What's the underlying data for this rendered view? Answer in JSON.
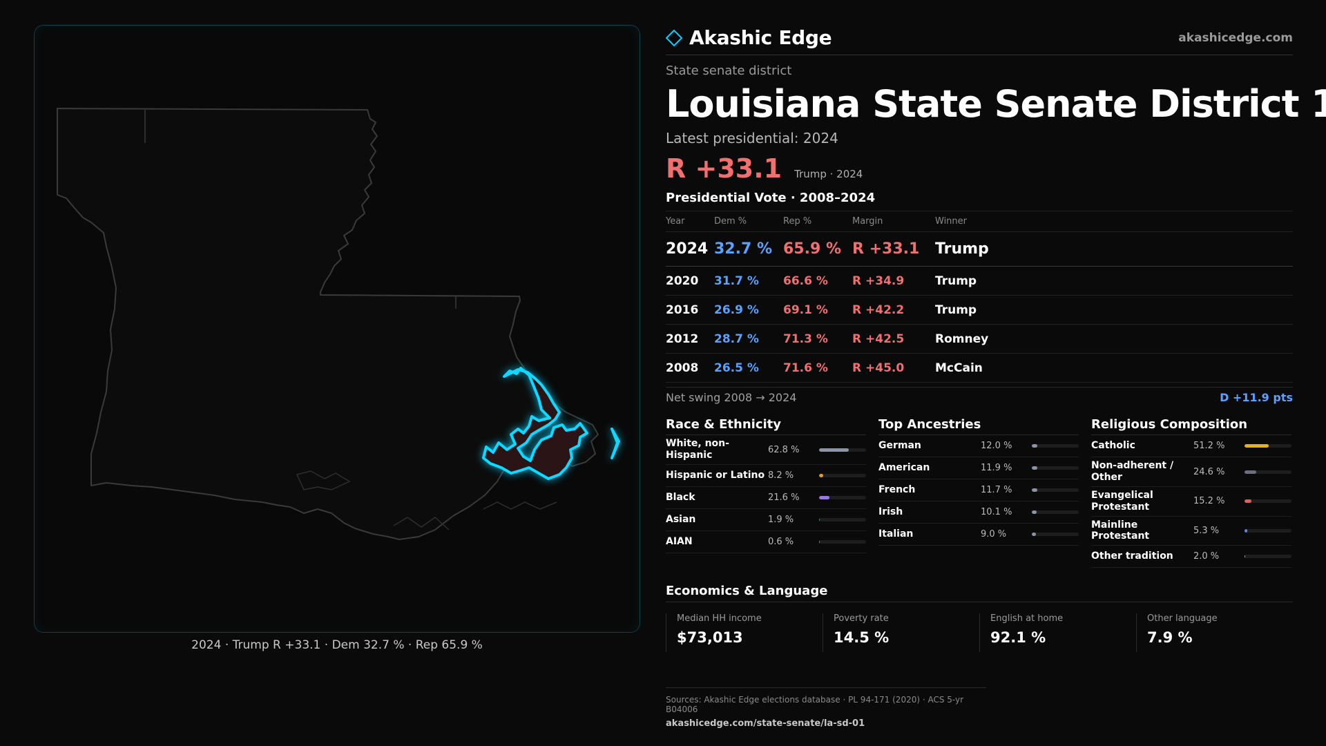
{
  "brand": {
    "name": "Akashic Edge",
    "url": "akashicedge.com",
    "accent": "#00d4ff"
  },
  "header": {
    "kind": "State senate district",
    "title": "Louisiana State Senate District 1",
    "latest": "Latest presidential: 2024",
    "margin": "R +33.1",
    "margin_sub": "Trump · 2024"
  },
  "votes": {
    "title": "Presidential Vote · 2008–2024",
    "headers": {
      "year": "Year",
      "dem": "Dem %",
      "rep": "Rep %",
      "margin": "Margin",
      "winner": "Winner"
    },
    "rows": [
      {
        "year": "2024",
        "dem": "32.7 %",
        "rep": "65.9 %",
        "margin": "R +33.1",
        "winner": "Trump"
      },
      {
        "year": "2020",
        "dem": "31.7 %",
        "rep": "66.6 %",
        "margin": "R +34.9",
        "winner": "Trump"
      },
      {
        "year": "2016",
        "dem": "26.9 %",
        "rep": "69.1 %",
        "margin": "R +42.2",
        "winner": "Trump"
      },
      {
        "year": "2012",
        "dem": "28.7 %",
        "rep": "71.3 %",
        "margin": "R +42.5",
        "winner": "Romney"
      },
      {
        "year": "2008",
        "dem": "26.5 %",
        "rep": "71.6 %",
        "margin": "R +45.0",
        "winner": "McCain"
      }
    ]
  },
  "swing": {
    "label": "Net swing 2008 → 2024",
    "value": "D +11.9 pts"
  },
  "race": {
    "title": "Race & Ethnicity",
    "items": [
      {
        "label": "White, non-Hispanic",
        "value": "62.8 %",
        "pct": 62.8,
        "color": "#8a96a8"
      },
      {
        "label": "Hispanic or Latino",
        "value": "8.2 %",
        "pct": 8.2,
        "color": "#e0a020"
      },
      {
        "label": "Black",
        "value": "21.6 %",
        "pct": 21.6,
        "color": "#9a7ae0"
      },
      {
        "label": "Asian",
        "value": "1.9 %",
        "pct": 1.9,
        "color": "#20b080"
      },
      {
        "label": "AIAN",
        "value": "0.6 %",
        "pct": 0.6,
        "color": "#888888"
      }
    ]
  },
  "ancestry": {
    "title": "Top Ancestries",
    "items": [
      {
        "label": "German",
        "value": "12.0 %",
        "pct": 12.0,
        "color": "#8a96a8"
      },
      {
        "label": "American",
        "value": "11.9 %",
        "pct": 11.9,
        "color": "#8a96a8"
      },
      {
        "label": "French",
        "value": "11.7 %",
        "pct": 11.7,
        "color": "#8a96a8"
      },
      {
        "label": "Irish",
        "value": "10.1 %",
        "pct": 10.1,
        "color": "#8a96a8"
      },
      {
        "label": "Italian",
        "value": "9.0 %",
        "pct": 9.0,
        "color": "#8a96a8"
      }
    ]
  },
  "religion": {
    "title": "Religious Composition",
    "items": [
      {
        "label": "Catholic",
        "value": "51.2 %",
        "pct": 51.2,
        "color": "#e8b020"
      },
      {
        "label": "Non-adherent / Other",
        "value": "24.6 %",
        "pct": 24.6,
        "color": "#6a7080"
      },
      {
        "label": "Evangelical Protestant",
        "value": "15.2 %",
        "pct": 15.2,
        "color": "#e06060"
      },
      {
        "label": "Mainline Protestant",
        "value": "5.3 %",
        "pct": 5.3,
        "color": "#5a8ae0"
      },
      {
        "label": "Other tradition",
        "value": "2.0 %",
        "pct": 2.0,
        "color": "#aaaaaa"
      }
    ]
  },
  "economics": {
    "title": "Economics & Language",
    "items": [
      {
        "label": "Median HH income",
        "value": "$73,013"
      },
      {
        "label": "Poverty rate",
        "value": "14.5 %"
      },
      {
        "label": "English at home",
        "value": "92.1 %"
      },
      {
        "label": "Other language",
        "value": "7.9 %"
      }
    ]
  },
  "map": {
    "caption": "2024 · Trump R +33.1 · Dem 32.7 % · Rep 65.9 %"
  },
  "sources": {
    "line": "Sources: Akashic Edge elections database · PL 94-171 (2020) · ACS 5-yr B04006",
    "url": "akashicedge.com/state-senate/la-sd-01"
  }
}
